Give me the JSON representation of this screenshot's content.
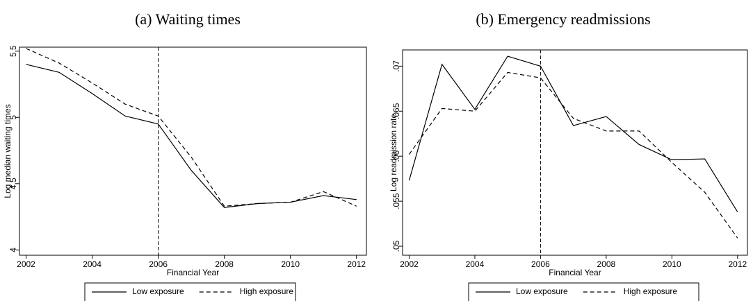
{
  "chart_data": [
    {
      "type": "line",
      "title": "(a) Waiting times",
      "x_label": "Financial Year",
      "y_label": "Log median waiting times",
      "x": [
        2002,
        2003,
        2004,
        2005,
        2006,
        2007,
        2008,
        2009,
        2010,
        2011,
        2012
      ],
      "series": [
        {
          "name": "Low exposure",
          "color": "#000000",
          "style": "solid",
          "values": [
            5.4,
            5.34,
            5.18,
            5.01,
            4.95,
            4.6,
            4.32,
            4.35,
            4.36,
            4.41,
            4.38
          ]
        },
        {
          "name": "High exposure",
          "color": "#000000",
          "style": "dashed",
          "values": [
            5.52,
            5.41,
            5.26,
            5.1,
            5.01,
            4.7,
            4.33,
            4.35,
            4.36,
            4.44,
            4.33
          ]
        }
      ],
      "xlim": [
        2001.8,
        2012.3
      ],
      "xticks": [
        2002,
        2004,
        2006,
        2008,
        2010,
        2012
      ],
      "ylim": [
        3.96,
        5.53
      ],
      "yticks": [
        4,
        4.5,
        5,
        5.5
      ],
      "vline": 2006,
      "grid": false
    },
    {
      "type": "line",
      "title": "(b) Emergency readmissions",
      "x_label": "Financial Year",
      "y_label": "Log readmission rate",
      "x": [
        2002,
        2003,
        2004,
        2005,
        2006,
        2007,
        2008,
        2009,
        2010,
        2011,
        2012
      ],
      "series": [
        {
          "name": "Low exposure",
          "color": "#000000",
          "style": "solid",
          "values": [
            0.0573,
            0.0702,
            0.0652,
            0.0711,
            0.07,
            0.0634,
            0.0644,
            0.0613,
            0.0596,
            0.0597,
            0.0538
          ]
        },
        {
          "name": "High exposure",
          "color": "#000000",
          "style": "dashed",
          "values": [
            0.0602,
            0.0653,
            0.065,
            0.0693,
            0.0687,
            0.0642,
            0.0628,
            0.0628,
            0.0593,
            0.056,
            0.0509
          ]
        }
      ],
      "xlim": [
        2001.8,
        2012.3
      ],
      "xticks": [
        2002,
        2004,
        2006,
        2008,
        2010,
        2012
      ],
      "ylim": [
        0.049,
        0.0718
      ],
      "yticks": [
        {
          "value": 0.05,
          "label": ".05"
        },
        {
          "value": 0.055,
          "label": ".055"
        },
        {
          "value": 0.06,
          "label": ".06"
        },
        {
          "value": 0.065,
          "label": ".065"
        },
        {
          "value": 0.07,
          "label": ".07"
        }
      ],
      "vline": 2006,
      "grid": false
    }
  ]
}
